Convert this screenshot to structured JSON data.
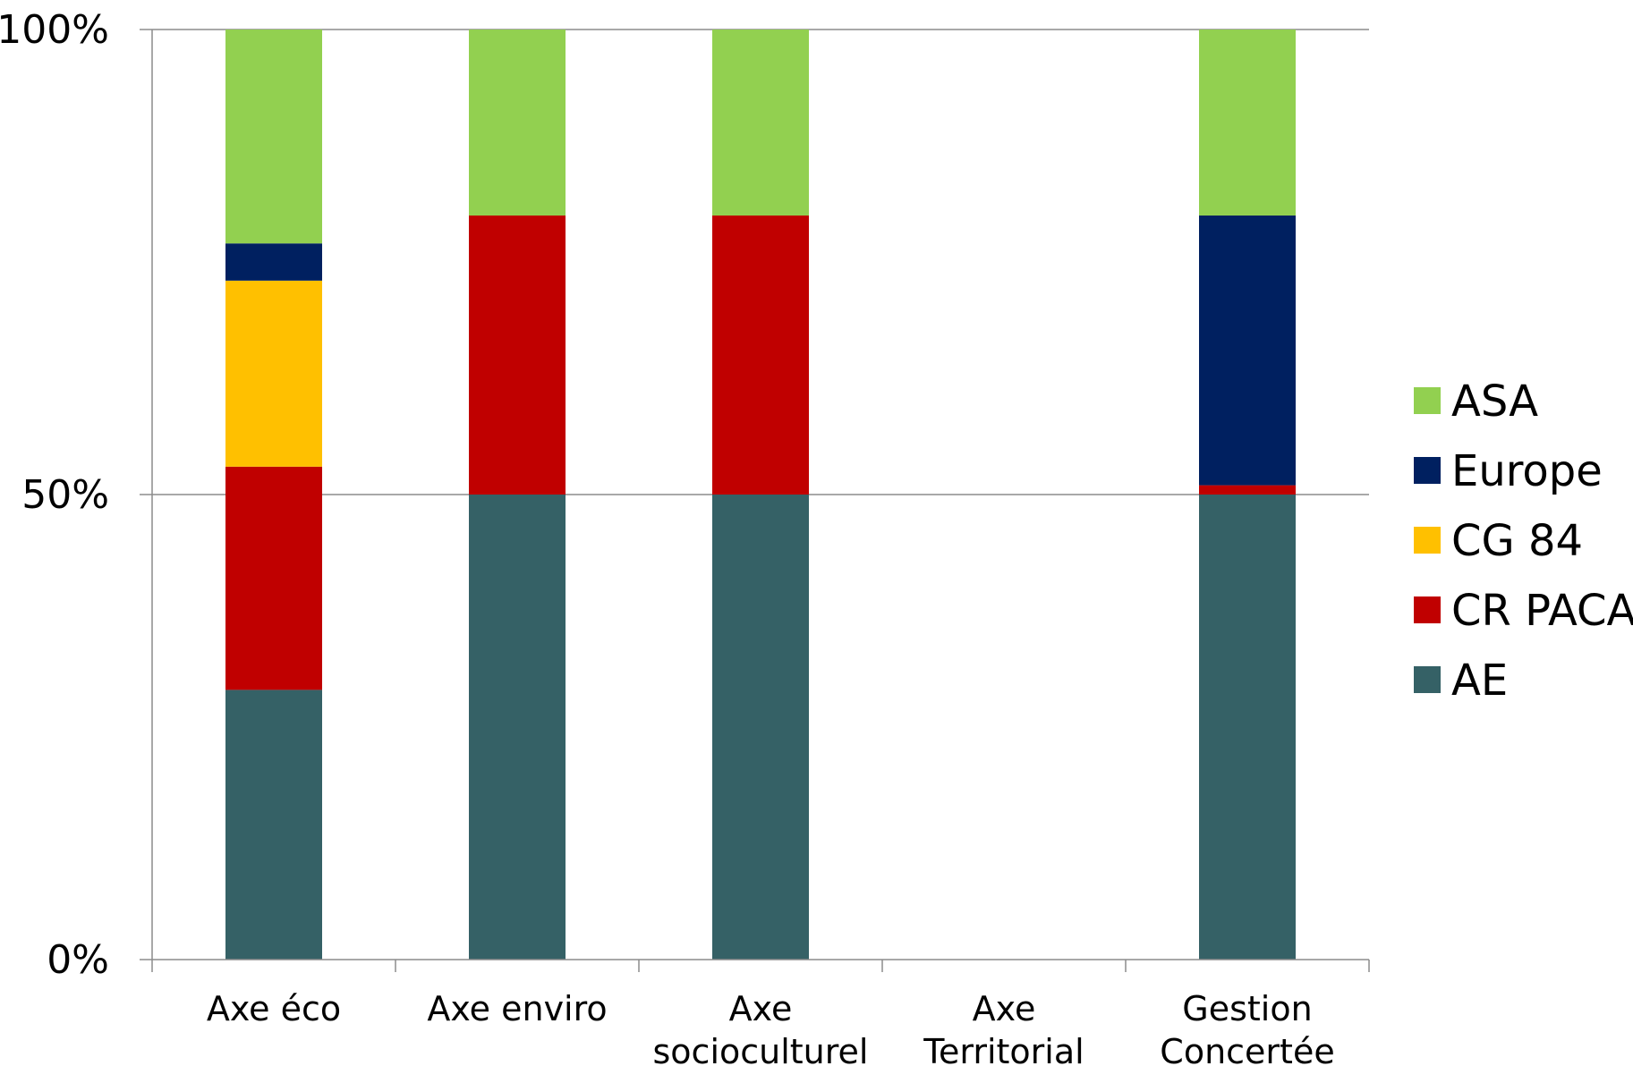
{
  "chart_data": {
    "type": "bar",
    "stacked": true,
    "normalized": true,
    "categories": [
      "Axe éco",
      "Axe enviro",
      "Axe socioculturel",
      "Axe Territorial",
      "Gestion Concertée"
    ],
    "category_lines": [
      [
        "Axe éco"
      ],
      [
        "Axe enviro"
      ],
      [
        "Axe",
        "socioculturel"
      ],
      [
        "Axe",
        "Territorial"
      ],
      [
        "Gestion",
        "Concertée"
      ]
    ],
    "series": [
      {
        "name": "AE",
        "color": "#356166",
        "values": [
          29,
          50,
          50,
          0,
          50
        ]
      },
      {
        "name": "CR PACA",
        "color": "#c00000",
        "values": [
          24,
          30,
          30,
          0,
          1
        ]
      },
      {
        "name": "CG 84",
        "color": "#ffc000",
        "values": [
          20,
          0,
          0,
          0,
          0
        ]
      },
      {
        "name": "Europe",
        "color": "#002060",
        "values": [
          4,
          0,
          0,
          0,
          29
        ]
      },
      {
        "name": "ASA",
        "color": "#92d050",
        "values": [
          23,
          20,
          20,
          0,
          20
        ]
      }
    ],
    "legend_order": [
      "ASA",
      "Europe",
      "CG 84",
      "CR PACA",
      "AE"
    ],
    "yticks": [
      "0%",
      "50%",
      "100%"
    ],
    "ylim": [
      0,
      100
    ],
    "grid": true,
    "legend_position": "right",
    "title": "",
    "xlabel": "",
    "ylabel": ""
  }
}
